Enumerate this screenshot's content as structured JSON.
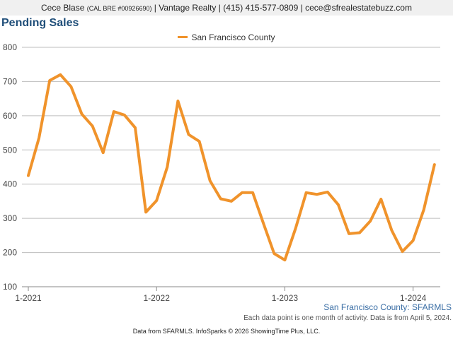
{
  "header": {
    "agent_name": "Cece Blase",
    "license": "(CAL BRE #00926690)",
    "rest": " | Vantage Realty | (415) 415-577-0809 | cece@sfrealestatebuzz.com"
  },
  "page_title": "Pending Sales",
  "source_line": "San Francisco County: SFARMLS",
  "note": "Each data point is one month of activity. Data is from April 5, 2024.",
  "footer": "Data from SFARMLS. InfoSparks © 2026 ShowingTime Plus, LLC.",
  "colors": {
    "series": "#f0932b",
    "grid": "#bdbdbd",
    "title": "#1f4e79"
  },
  "chart_data": {
    "type": "line",
    "title": "Pending Sales",
    "xlabel": "",
    "ylabel": "",
    "ylim": [
      100,
      800
    ],
    "yticks": [
      100,
      200,
      300,
      400,
      500,
      600,
      700,
      800
    ],
    "xticks": [
      "1-2021",
      "1-2022",
      "1-2023",
      "1-2024"
    ],
    "grid": true,
    "legend": "top-center",
    "x": [
      "2021-01",
      "2021-02",
      "2021-03",
      "2021-04",
      "2021-05",
      "2021-06",
      "2021-07",
      "2021-08",
      "2021-09",
      "2021-10",
      "2021-11",
      "2021-12",
      "2022-01",
      "2022-02",
      "2022-03",
      "2022-04",
      "2022-05",
      "2022-06",
      "2022-07",
      "2022-08",
      "2022-09",
      "2022-10",
      "2022-11",
      "2022-12",
      "2023-01",
      "2023-02",
      "2023-03",
      "2023-04",
      "2023-05",
      "2023-06",
      "2023-07",
      "2023-08",
      "2023-09",
      "2023-10",
      "2023-11",
      "2023-12",
      "2024-01",
      "2024-02",
      "2024-03"
    ],
    "series": [
      {
        "name": "San Francisco County",
        "values": [
          425,
          535,
          703,
          720,
          685,
          605,
          570,
          492,
          612,
          602,
          565,
          318,
          352,
          450,
          643,
          545,
          525,
          410,
          357,
          350,
          375,
          375,
          285,
          197,
          178,
          270,
          375,
          370,
          377,
          340,
          255,
          258,
          292,
          356,
          265,
          203,
          235,
          325,
          457
        ]
      }
    ]
  }
}
